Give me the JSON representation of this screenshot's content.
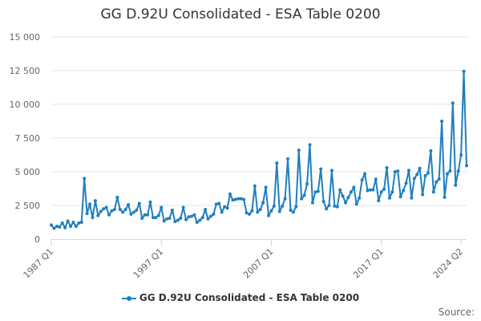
{
  "colors": {
    "series": "#1f7fbf",
    "grid": "#e6e6e6",
    "axis": "#ccd6eb"
  },
  "source_label": "Source:",
  "chart_data": {
    "type": "line",
    "title": "GG D.92U Consolidated - ESA Table 0200",
    "xlabel": "",
    "ylabel": "",
    "ylim": [
      0,
      15000
    ],
    "yticks": [
      0,
      2500,
      5000,
      7500,
      10000,
      12500,
      15000
    ],
    "ytick_labels": [
      "0",
      "2 500",
      "5 000",
      "7 500",
      "10 000",
      "12 500",
      "15 000"
    ],
    "xtick_labels": [
      {
        "label": "1987 Q1",
        "index": 0
      },
      {
        "label": "1997 Q1",
        "index": 40
      },
      {
        "label": "2007 Q1",
        "index": 80
      },
      {
        "label": "2017 Q1",
        "index": 120
      },
      {
        "label": "2024 Q2",
        "index": 149
      }
    ],
    "grid": true,
    "legend": "bottom-center",
    "series": [
      {
        "name": "GG D.92U Consolidated - ESA Table 0200",
        "start": "1987 Q1",
        "frequency": "quarterly",
        "values": [
          1050,
          800,
          950,
          900,
          1200,
          850,
          1350,
          950,
          1250,
          950,
          1200,
          1250,
          4500,
          1900,
          2600,
          1600,
          2850,
          1750,
          2050,
          2250,
          2350,
          1800,
          2100,
          2200,
          3100,
          2200,
          2000,
          2200,
          2550,
          1850,
          2000,
          2150,
          2650,
          1550,
          1800,
          1800,
          2750,
          1600,
          1600,
          1750,
          2350,
          1350,
          1500,
          1550,
          2150,
          1300,
          1400,
          1550,
          2350,
          1450,
          1650,
          1700,
          1800,
          1250,
          1400,
          1600,
          2200,
          1500,
          1700,
          1850,
          2600,
          2650,
          2000,
          2400,
          2300,
          3350,
          2900,
          2950,
          3000,
          3000,
          2950,
          1950,
          1850,
          2100,
          3950,
          2000,
          2200,
          2700,
          3850,
          1750,
          2100,
          2450,
          5650,
          2050,
          2450,
          3000,
          5950,
          2150,
          2000,
          2400,
          6600,
          3000,
          3250,
          4100,
          7000,
          2700,
          3500,
          3550,
          5200,
          2800,
          2250,
          2500,
          5100,
          2450,
          2400,
          3650,
          3200,
          2700,
          3100,
          3500,
          3850,
          2600,
          3050,
          4400,
          4850,
          3600,
          3650,
          3650,
          4450,
          2850,
          3500,
          3700,
          5300,
          3050,
          3500,
          5000,
          5050,
          3150,
          3600,
          4150,
          5100,
          3050,
          4500,
          4800,
          5250,
          3300,
          4700,
          4900,
          6550,
          3500,
          4250,
          4450,
          8750,
          3100,
          4850,
          5050,
          10100,
          4000,
          5050,
          6250,
          12450,
          5450
        ]
      }
    ]
  }
}
